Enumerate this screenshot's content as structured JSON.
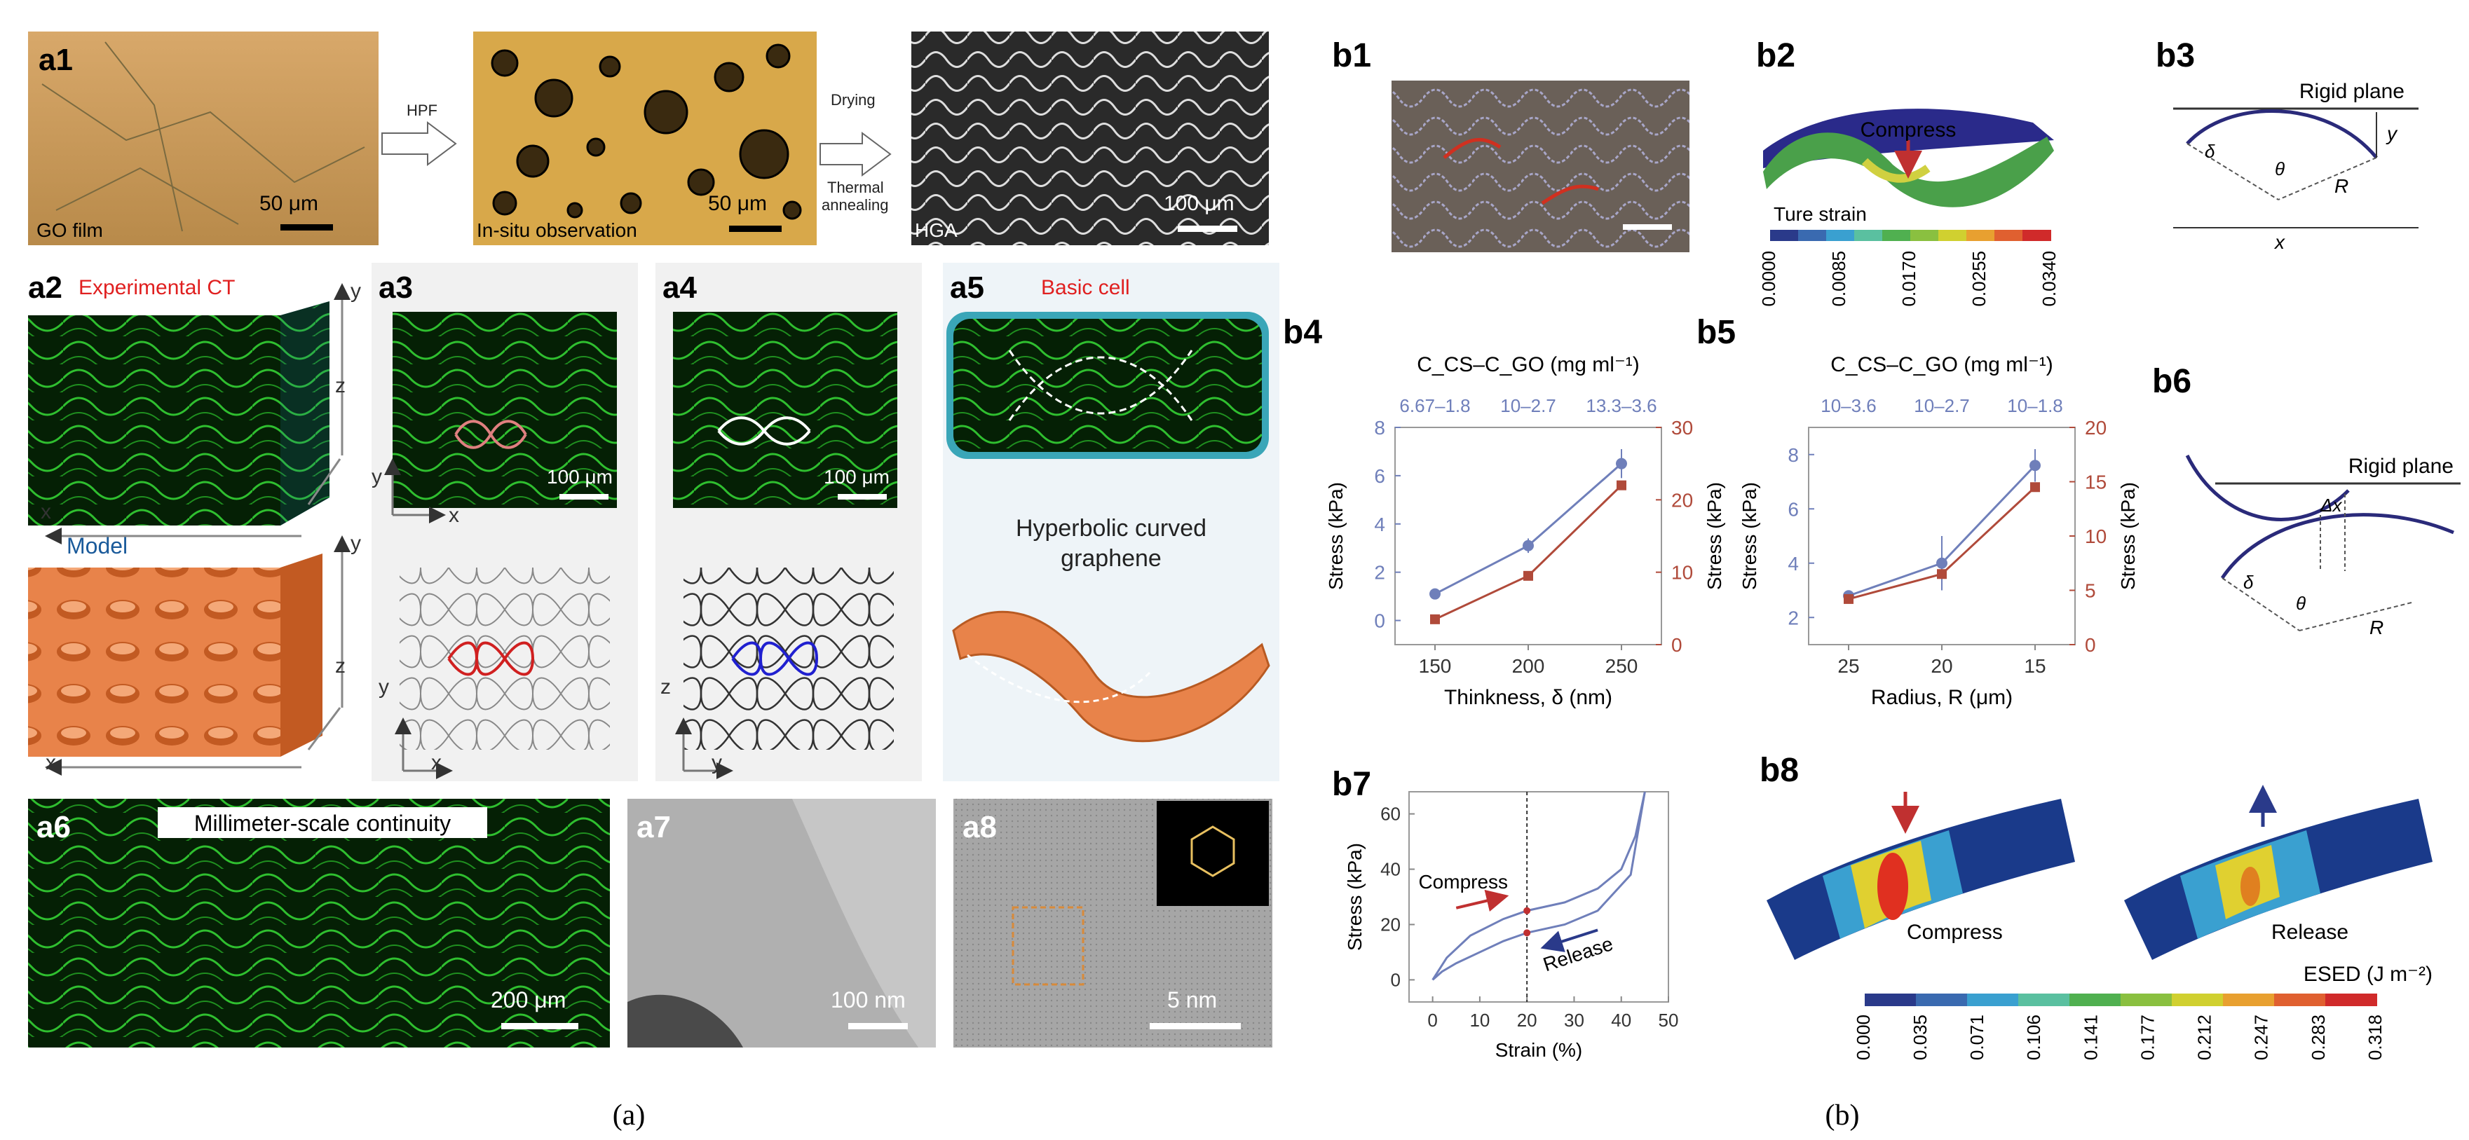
{
  "caption": {
    "a": "(a)",
    "b": "(b)"
  },
  "panels": {
    "a1": {
      "label": "a1",
      "flow1": "HPF",
      "flow2_line1": "Drying",
      "flow2_line2": "Thermal",
      "flow2_line3": "annealing",
      "img1_label": "GO film",
      "img1_scale": "50 μm",
      "img2_label": "In-situ observation",
      "img2_scale": "50 μm",
      "img3_label": "HGA",
      "img3_scale": "100 μm"
    },
    "a2": {
      "label": "a2",
      "title": "Experimental CT",
      "model": "Model",
      "axis_y": "y",
      "axis_z": "z",
      "axis_x": "x"
    },
    "a3": {
      "label": "a3",
      "scale": "100 μm",
      "axis_y": "y",
      "axis_x": "x"
    },
    "a4": {
      "label": "a4",
      "scale": "100 μm",
      "axis_y": "y",
      "axis_x": "x",
      "axis_z": "z",
      "axis_y2": "y"
    },
    "a5": {
      "label": "a5",
      "title": "Basic cell",
      "line1": "Hyperbolic curved",
      "line2": "graphene"
    },
    "a6": {
      "label": "a6",
      "title": "Millimeter-scale continuity",
      "scale": "200 μm"
    },
    "a7": {
      "label": "a7",
      "scale": "100 nm"
    },
    "a8": {
      "label": "a8",
      "scale": "5 nm"
    },
    "b1": {
      "label": "b1"
    },
    "b2": {
      "label": "b2",
      "compress": "Compress",
      "cbar_title": "Ture strain",
      "ticks": [
        "0.0000",
        "0.0085",
        "0.0170",
        "0.0255",
        "0.0340"
      ]
    },
    "b3": {
      "label": "b3",
      "rigid": "Rigid plane",
      "delta": "δ",
      "theta": "θ",
      "R": "R",
      "x": "x",
      "y": "y"
    },
    "b6": {
      "label": "b6",
      "rigid": "Rigid plane",
      "dx": "Δx",
      "delta": "δ",
      "theta": "θ",
      "R": "R"
    },
    "b8": {
      "label": "b8",
      "compress": "Compress",
      "release": "Release",
      "cbar_title": "ESED (J m⁻²)",
      "ticks": [
        "0.000",
        "0.035",
        "0.071",
        "0.106",
        "0.141",
        "0.177",
        "0.212",
        "0.247",
        "0.283",
        "0.318"
      ]
    }
  },
  "colors": {
    "blue_series": "#6f7fba",
    "red_series": "#b04a3a",
    "ct_green": "#2fbf2f",
    "model_orange": "#e8834a"
  },
  "chart_data": [
    {
      "id": "b4",
      "type": "line",
      "label": "b4",
      "top_title": "C_CS–C_GO (mg ml⁻¹)",
      "top_ticks": [
        "6.67–1.8",
        "10–2.7",
        "13.3–3.6"
      ],
      "xlabel": "Thinkness, δ (nm)",
      "ylabel_left": "Stress (kPa)",
      "ylabel_right": "Stress (kPa)",
      "categories": [
        "150",
        "200",
        "250"
      ],
      "ylim_left": [
        -1,
        8
      ],
      "yticks_left": [
        0,
        2,
        4,
        6,
        8
      ],
      "ylim_right": [
        0,
        30
      ],
      "yticks_right": [
        0,
        10,
        20,
        30
      ],
      "series": [
        {
          "axis": "left",
          "color": "#6f7fba",
          "values": [
            1.1,
            3.1,
            6.5
          ],
          "err": [
            0.1,
            0.3,
            0.6
          ]
        },
        {
          "axis": "right",
          "color": "#b04a3a",
          "values": [
            3.5,
            9.5,
            22
          ]
        }
      ]
    },
    {
      "id": "b5",
      "type": "line",
      "label": "b5",
      "top_title": "C_CS–C_GO (mg ml⁻¹)",
      "top_ticks": [
        "10–3.6",
        "10–2.7",
        "10–1.8"
      ],
      "xlabel": "Radius, R (μm)",
      "ylabel_left": "Stress (kPa)",
      "ylabel_right": "Stress (kPa)",
      "categories": [
        "25",
        "20",
        "15"
      ],
      "ylim_left": [
        1,
        9
      ],
      "yticks_left": [
        2,
        4,
        6,
        8
      ],
      "ylim_right": [
        0,
        20
      ],
      "yticks_right": [
        0,
        5,
        10,
        15,
        20
      ],
      "series": [
        {
          "axis": "left",
          "color": "#6f7fba",
          "values": [
            2.8,
            4.0,
            7.6
          ],
          "err": [
            0.1,
            1.0,
            0.6
          ]
        },
        {
          "axis": "right",
          "color": "#b04a3a",
          "values": [
            4.2,
            6.5,
            14.5
          ]
        }
      ]
    },
    {
      "id": "b7",
      "type": "line",
      "label": "b7",
      "xlabel": "Strain (%)",
      "ylabel": "Stress (kPa)",
      "xlim": [
        -5,
        50
      ],
      "xticks": [
        0,
        10,
        20,
        30,
        40,
        50
      ],
      "ylim": [
        -8,
        68
      ],
      "yticks": [
        0,
        20,
        40,
        60
      ],
      "annotations": [
        "Compress",
        "Release"
      ],
      "series": [
        {
          "name": "loading",
          "x": [
            0,
            3,
            8,
            15,
            20,
            28,
            35,
            40,
            43,
            45
          ],
          "y": [
            0,
            8,
            16,
            22,
            25,
            28,
            33,
            40,
            52,
            68
          ]
        },
        {
          "name": "unloading",
          "x": [
            45,
            42,
            35,
            28,
            20,
            15,
            10,
            5,
            2,
            0
          ],
          "y": [
            68,
            38,
            25,
            20,
            17,
            14,
            10,
            6,
            3,
            0
          ]
        }
      ]
    }
  ]
}
